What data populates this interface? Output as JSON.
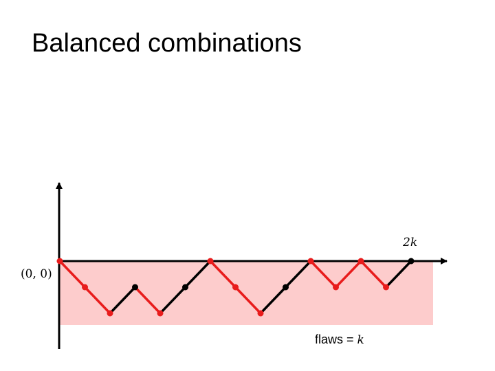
{
  "slide": {
    "title": "Balanced combinations"
  },
  "diagram": {
    "origin_label": "(0, 0)",
    "end_label": "2k",
    "flaws_text": "flaws = ",
    "flaws_var": "k",
    "colors": {
      "shaded_region": "#fdcccc",
      "flaw_step": "#e81c1c",
      "normal_step": "#000000",
      "axis": "#000000"
    },
    "path": {
      "heights": [
        0,
        -1,
        -2,
        -1,
        -2,
        -1,
        0,
        -1,
        -2,
        -1,
        0,
        -1,
        0,
        -1,
        0
      ],
      "point_colors": [
        "red",
        "red",
        "red",
        "black",
        "red",
        "black",
        "red",
        "red",
        "red",
        "black",
        "red",
        "red",
        "red",
        "red",
        "black"
      ]
    }
  }
}
